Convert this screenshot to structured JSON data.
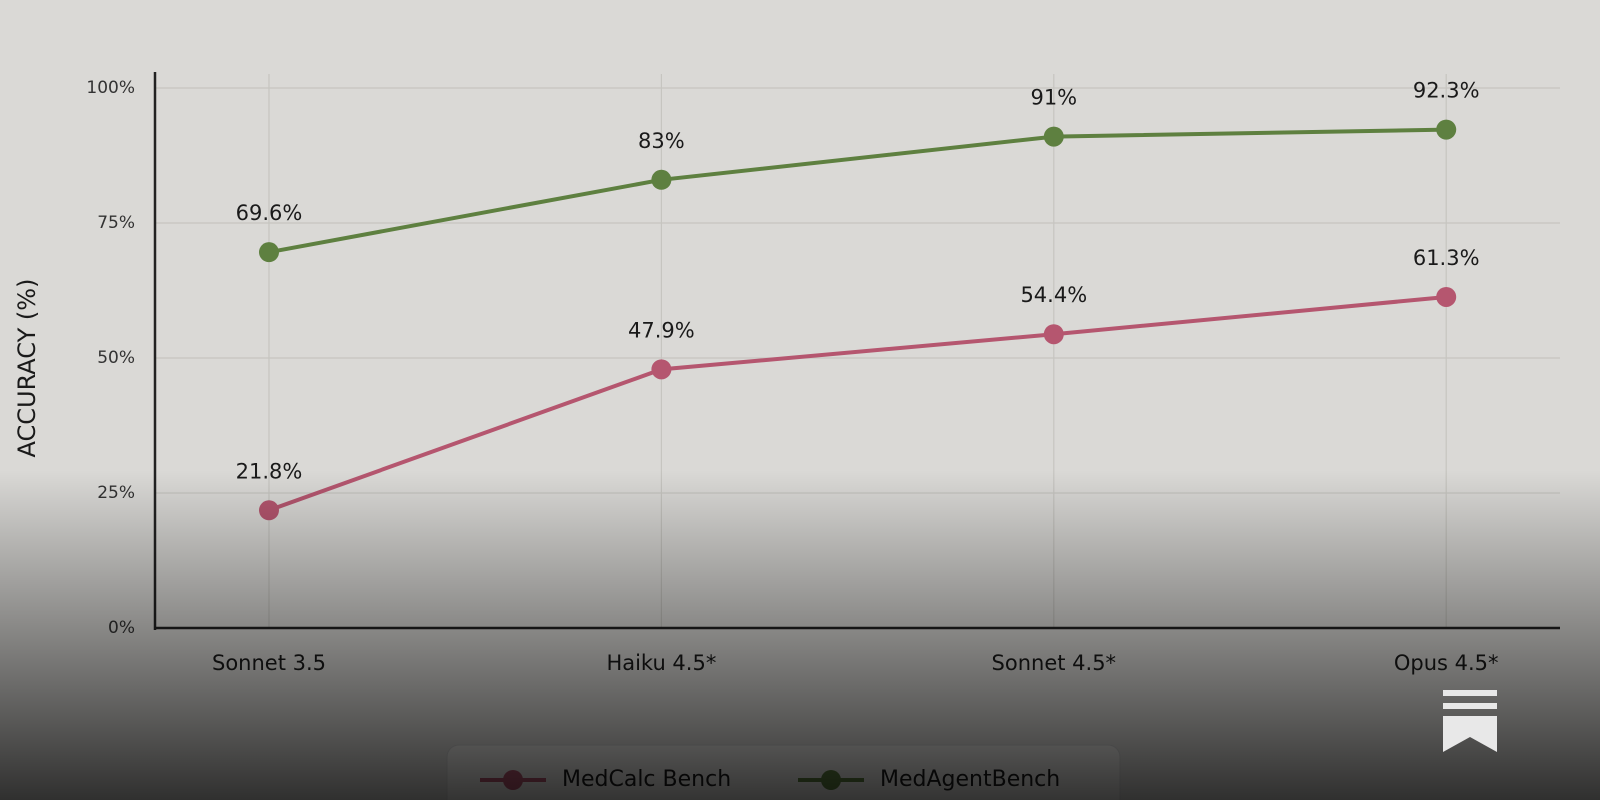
{
  "chart_data": {
    "type": "line",
    "y_label": "ACCURACY (%)",
    "categories": [
      "Sonnet 3.5",
      "Haiku 4.5*",
      "Sonnet 4.5*",
      "Opus 4.5*"
    ],
    "series": [
      {
        "name": "MedCalc Bench",
        "color": "#b5566f",
        "values": [
          21.8,
          47.9,
          54.4,
          61.3
        ],
        "value_labels": [
          "21.8%",
          "47.9%",
          "54.4%",
          "61.3%"
        ]
      },
      {
        "name": "MedAgentBench",
        "color": "#5e8040",
        "values": [
          69.6,
          83,
          91,
          92.3
        ],
        "value_labels": [
          "69.6%",
          "83%",
          "91%",
          "92.3%"
        ]
      }
    ],
    "ylim": [
      0,
      100
    ],
    "yticks": [
      {
        "value": 0,
        "label": "0%"
      },
      {
        "value": 25,
        "label": "25%"
      },
      {
        "value": 50,
        "label": "50%"
      },
      {
        "value": 75,
        "label": "75%"
      },
      {
        "value": 100,
        "label": "100%"
      }
    ],
    "grid": true
  }
}
